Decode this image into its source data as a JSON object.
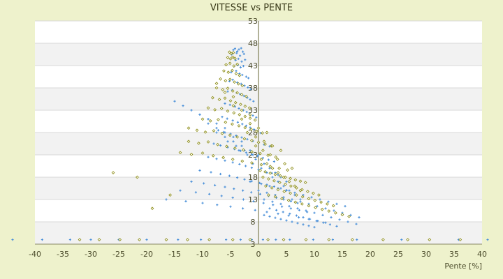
{
  "chart_data": {
    "type": "scatter",
    "title": "VITESSE vs PENTE",
    "xlabel": "Pente [%]",
    "ylabel": "",
    "xlim": [
      -40,
      40
    ],
    "ylim": [
      3,
      53
    ],
    "x_ticks": [
      -40,
      -35,
      -30,
      -25,
      -20,
      -15,
      -10,
      -5,
      0,
      5,
      10,
      15,
      20,
      25,
      30,
      35,
      40
    ],
    "y_ticks": [
      3,
      8,
      13,
      18,
      23,
      28,
      33,
      38,
      43,
      48,
      53
    ],
    "y_tick_labels": [
      "3",
      "8",
      "13",
      "18",
      "23",
      "28",
      "33",
      "38",
      "43",
      "48",
      "53"
    ],
    "grid": true,
    "legend": "none",
    "series": [
      {
        "color": "#4a90d9",
        "marker": "plus",
        "x": [
          -44,
          -38.7,
          -33.7,
          -30,
          -25,
          -20,
          -14.4,
          -10.3,
          -5.8,
          -3.2,
          -1.2,
          0.8,
          3.1,
          5.6,
          9.8,
          13.3,
          17.6,
          25.6,
          35.8,
          41,
          -4.5,
          -4.2,
          -3.8,
          -3.5,
          -3.1,
          -2.8,
          -4.8,
          -3.9,
          -3.3,
          -2.6,
          -4.1,
          -3.6,
          -3.0,
          -2.4,
          -4.4,
          -3.7,
          -3.2,
          -2.7,
          -4.9,
          -4.0,
          -3.4,
          -2.9,
          -2.2,
          -1.8,
          -5.2,
          -4.6,
          -3.8,
          -3.1,
          -2.5,
          -1.9,
          -1.4,
          -5.5,
          -4.7,
          -3.9,
          -3.3,
          -2.6,
          -2.0,
          -1.5,
          -0.9,
          -6.0,
          -5.1,
          -4.2,
          -3.5,
          -2.7,
          -2.1,
          -1.6,
          -1.0,
          -0.4,
          -6.5,
          -5.6,
          -4.6,
          -3.7,
          -2.9,
          -2.2,
          -1.5,
          -0.8,
          -0.2,
          0.4,
          -7.2,
          -6.2,
          -5.0,
          -4.0,
          -3.0,
          -2.0,
          -1.0,
          0.0,
          1.0,
          2.0,
          -8.0,
          -6.8,
          -5.5,
          -4.3,
          -3.2,
          -2.2,
          -1.2,
          -0.2,
          0.8,
          1.8,
          2.8,
          -9.0,
          -7.5,
          -6.0,
          -4.6,
          -3.4,
          -2.3,
          -1.2,
          0.0,
          1.2,
          2.4,
          3.5,
          -10.5,
          -8.5,
          -6.8,
          -5.2,
          -3.8,
          -2.5,
          -1.2,
          0.2,
          1.5,
          2.8,
          4.0,
          5.0,
          -12.0,
          -9.8,
          -7.8,
          -6.0,
          -4.4,
          -2.8,
          -1.3,
          0.3,
          1.8,
          3.2,
          4.5,
          5.8,
          7.0,
          -14.0,
          -11.2,
          -8.8,
          -6.6,
          -4.6,
          -2.7,
          -0.9,
          0.9,
          2.6,
          4.2,
          5.8,
          7.3,
          8.7,
          -16.5,
          -13.0,
          -10.0,
          -7.4,
          -5.0,
          -2.8,
          -0.6,
          1.5,
          3.5,
          5.4,
          7.2,
          9.0,
          10.6,
          12.0,
          -1.5,
          0.5,
          2.0,
          3.5,
          5.0,
          6.5,
          8.0,
          9.5,
          11.0,
          12.5,
          14.0,
          15.5,
          0.0,
          1.5,
          3.0,
          4.5,
          6.0,
          7.5,
          9.0,
          10.5,
          12.0,
          13.5,
          15.0,
          16.5,
          18.0,
          1.0,
          2.5,
          4.0,
          5.5,
          7.0,
          8.5,
          10.0,
          11.5,
          13.0,
          14.5,
          16.0,
          17.5,
          2.0,
          3.2,
          4.4,
          5.6,
          6.8,
          8.0,
          9.2,
          10.4,
          11.6,
          12.8,
          14.0,
          1.0,
          2.0,
          3.0,
          4.0,
          5.0,
          6.0,
          7.0,
          8.0,
          9.0,
          10.0,
          -1.0,
          0.5,
          1.5,
          2.5,
          3.5,
          4.5,
          5.5,
          6.5,
          7.5,
          -3.5,
          -2.0,
          -0.5,
          1.0,
          2.0,
          3.0,
          4.0,
          5.0,
          -5.5,
          -4.0,
          -2.5,
          -1.0,
          0.5,
          1.5,
          2.5,
          -7.5,
          -6.0,
          -4.5,
          -3.0,
          -1.5,
          0.0,
          -9.0,
          -7.5,
          -6.0,
          -4.5,
          -3.0,
          -10.5,
          -9.0,
          -7.5,
          -6.0,
          -12.0,
          -10.5,
          -9.0,
          -13.5,
          -12.0,
          -15.0
        ],
        "y": [
          4,
          4,
          4,
          4,
          4,
          4,
          4,
          4,
          4,
          4,
          4,
          4,
          4,
          4,
          4,
          4,
          4,
          4,
          4,
          4,
          46.5,
          46.8,
          46.2,
          46.6,
          46.9,
          46.1,
          45.5,
          45.8,
          45.2,
          45.6,
          44.2,
          44.5,
          43.9,
          44.3,
          42.8,
          43.1,
          42.6,
          42.9,
          41.5,
          41.8,
          41.2,
          40.9,
          40.5,
          40.2,
          39.5,
          39.8,
          39.2,
          38.9,
          38.5,
          38.1,
          37.7,
          37.2,
          37.5,
          36.9,
          36.6,
          36.2,
          35.8,
          35.4,
          35.0,
          34.5,
          34.2,
          33.8,
          33.4,
          33.0,
          32.6,
          32.2,
          31.8,
          31.4,
          31.5,
          31.1,
          30.7,
          30.3,
          29.9,
          29.5,
          29.1,
          28.7,
          28.3,
          27.9,
          28.5,
          28.1,
          27.7,
          27.3,
          26.9,
          26.5,
          26.1,
          25.7,
          25.3,
          24.9,
          25.5,
          25.1,
          24.7,
          24.3,
          23.9,
          23.5,
          23.1,
          22.7,
          22.3,
          21.9,
          21.5,
          22.5,
          22.1,
          21.7,
          21.3,
          20.9,
          20.5,
          20.1,
          19.7,
          19.3,
          18.9,
          18.5,
          19.5,
          19.1,
          18.7,
          18.3,
          17.9,
          17.5,
          17.1,
          16.7,
          16.3,
          15.9,
          15.5,
          15.1,
          17.0,
          16.6,
          16.2,
          15.8,
          15.4,
          15.0,
          14.6,
          14.2,
          13.8,
          13.4,
          13.0,
          12.6,
          12.2,
          15.0,
          14.6,
          14.2,
          13.8,
          13.4,
          13.0,
          12.6,
          12.2,
          11.8,
          11.4,
          11.0,
          10.6,
          10.2,
          13.0,
          12.6,
          12.2,
          11.8,
          11.4,
          11.0,
          10.6,
          10.2,
          9.8,
          9.4,
          9.0,
          8.6,
          8.2,
          7.8,
          17.0,
          16.5,
          16.0,
          15.5,
          15.0,
          14.5,
          14.0,
          13.5,
          13.0,
          12.5,
          12.0,
          11.5,
          15.0,
          14.5,
          14.0,
          13.5,
          13.0,
          12.5,
          12.0,
          11.5,
          11.0,
          10.5,
          10.0,
          9.5,
          9.0,
          13.0,
          12.5,
          12.0,
          11.5,
          11.0,
          10.5,
          10.0,
          9.5,
          9.0,
          8.5,
          8.0,
          7.5,
          11.0,
          10.6,
          10.2,
          9.8,
          9.4,
          9.0,
          8.6,
          8.2,
          7.8,
          7.4,
          7.0,
          9.5,
          9.2,
          8.9,
          8.6,
          8.3,
          8.0,
          7.7,
          7.4,
          7.1,
          6.8,
          21.0,
          20.0,
          19.0,
          18.0,
          17.0,
          16.0,
          15.0,
          14.0,
          13.0,
          24.0,
          23.0,
          22.0,
          21.0,
          20.0,
          19.0,
          18.0,
          17.0,
          26.0,
          25.0,
          24.0,
          23.0,
          22.0,
          21.0,
          20.0,
          28.0,
          27.0,
          26.0,
          25.0,
          24.0,
          23.0,
          30.0,
          29.0,
          28.0,
          27.0,
          26.0,
          32.0,
          31.0,
          30.0,
          29.0,
          33.0,
          32.0,
          31.0,
          34.0,
          33.0,
          35.0
        ]
      },
      {
        "color": "#8a8a10",
        "marker": "diamond",
        "x": [
          -32,
          -28.5,
          -24.8,
          -21.3,
          -16.5,
          -12.7,
          -8.8,
          -4.6,
          -1.5,
          1.7,
          4.5,
          8.5,
          12.6,
          16.8,
          22.3,
          26.7,
          30.6,
          36.1,
          -5.2,
          -4.9,
          -4.5,
          -5.5,
          -5.0,
          -4.6,
          -4.2,
          -5.8,
          -5.1,
          -4.4,
          -3.8,
          -6.2,
          -5.4,
          -4.7,
          -4.0,
          -3.4,
          -6.8,
          -5.9,
          -5.1,
          -4.3,
          -3.6,
          -2.9,
          -7.5,
          -6.4,
          -5.5,
          -4.6,
          -3.8,
          -3.0,
          -2.2,
          -8.2,
          -7.0,
          -6.0,
          -5.0,
          -4.1,
          -3.2,
          -2.4,
          -1.6,
          -9.0,
          -7.8,
          -6.6,
          -5.5,
          -4.4,
          -3.4,
          -2.4,
          -1.5,
          -0.6,
          -10.0,
          -8.6,
          -7.2,
          -5.9,
          -4.7,
          -3.5,
          -2.4,
          -1.3,
          -0.3,
          0.7,
          -11.0,
          -9.5,
          -8.0,
          -6.5,
          -5.1,
          -3.8,
          -2.5,
          -1.2,
          0.0,
          1.2,
          2.3,
          -12.5,
          -10.7,
          -9.0,
          -7.3,
          -5.7,
          -4.2,
          -2.7,
          -1.2,
          0.3,
          1.7,
          3.1,
          -14.0,
          -12.0,
          -10.0,
          -8.1,
          -6.3,
          -4.6,
          -2.9,
          -1.2,
          0.5,
          2.1,
          3.7,
          5.2,
          0.3,
          1.2,
          2.1,
          3.0,
          3.9,
          4.8,
          5.7,
          6.6,
          7.5,
          8.4,
          0.8,
          1.8,
          2.8,
          3.8,
          4.8,
          5.8,
          6.8,
          7.8,
          8.8,
          9.8,
          10.8,
          1.3,
          2.4,
          3.5,
          4.6,
          5.7,
          6.8,
          7.9,
          9.0,
          10.1,
          11.2,
          12.3,
          13.4,
          1.8,
          3.0,
          4.2,
          5.4,
          6.6,
          7.8,
          9.0,
          10.2,
          11.4,
          12.6,
          13.8,
          15.0,
          16.2,
          0.5,
          1.5,
          2.5,
          3.5,
          4.5,
          5.5,
          6.5,
          7.5,
          -0.5,
          0.8,
          2.1,
          3.4,
          4.7,
          6.0,
          -2.0,
          -0.5,
          1.0,
          2.5,
          4.0,
          -3.0,
          -1.5,
          0.0,
          1.5,
          -4.5,
          -3.0,
          -1.5,
          -6.0,
          -4.5,
          -7.5,
          -21.7,
          -15.8,
          -19.0,
          -26,
          -12.5
        ],
        "y": [
          4,
          4,
          4,
          4,
          4,
          4,
          4,
          4,
          4,
          4,
          4,
          4,
          4,
          4,
          4,
          4,
          4,
          4,
          46.0,
          45.7,
          45.9,
          44.8,
          44.5,
          44.9,
          44.6,
          43.2,
          43.5,
          42.9,
          43.3,
          41.8,
          41.5,
          41.9,
          41.2,
          40.8,
          40.0,
          39.6,
          39.9,
          39.3,
          38.9,
          38.5,
          38.0,
          37.6,
          37.9,
          37.3,
          36.9,
          36.5,
          36.1,
          35.8,
          35.4,
          35.7,
          35.1,
          34.7,
          34.3,
          33.9,
          33.5,
          33.5,
          33.1,
          33.4,
          32.8,
          32.4,
          32.0,
          31.6,
          31.2,
          30.8,
          31.0,
          30.6,
          30.9,
          30.3,
          29.9,
          29.5,
          29.1,
          28.7,
          28.3,
          27.9,
          28.5,
          28.1,
          28.4,
          27.8,
          27.4,
          27.0,
          26.6,
          26.2,
          25.8,
          25.4,
          25.0,
          26.0,
          25.6,
          25.9,
          25.3,
          24.9,
          24.5,
          24.1,
          23.7,
          23.3,
          22.9,
          22.5,
          23.5,
          23.1,
          23.4,
          22.8,
          22.4,
          22.0,
          21.6,
          21.2,
          20.8,
          20.4,
          20.0,
          19.6,
          19.5,
          19.2,
          18.9,
          18.6,
          18.3,
          18.0,
          17.7,
          17.4,
          17.1,
          16.8,
          18.0,
          17.6,
          17.2,
          16.8,
          16.4,
          16.0,
          15.6,
          15.2,
          14.8,
          14.4,
          14.0,
          16.0,
          15.6,
          15.2,
          14.8,
          14.4,
          14.0,
          13.6,
          13.2,
          12.8,
          12.4,
          12.0,
          11.6,
          14.0,
          13.6,
          13.2,
          12.8,
          12.4,
          12.0,
          11.6,
          11.2,
          10.8,
          10.4,
          10.0,
          9.6,
          9.2,
          22.0,
          21.0,
          20.0,
          19.0,
          18.0,
          17.0,
          16.0,
          15.0,
          25.0,
          24.0,
          23.0,
          22.0,
          21.0,
          20.0,
          28.0,
          27.0,
          26.0,
          25.0,
          24.0,
          31.0,
          30.0,
          29.0,
          28.0,
          34.0,
          33.0,
          32.0,
          37.0,
          36.0,
          39.0,
          18.0,
          14.0,
          11.0,
          19.0,
          29.0
        ]
      }
    ]
  }
}
